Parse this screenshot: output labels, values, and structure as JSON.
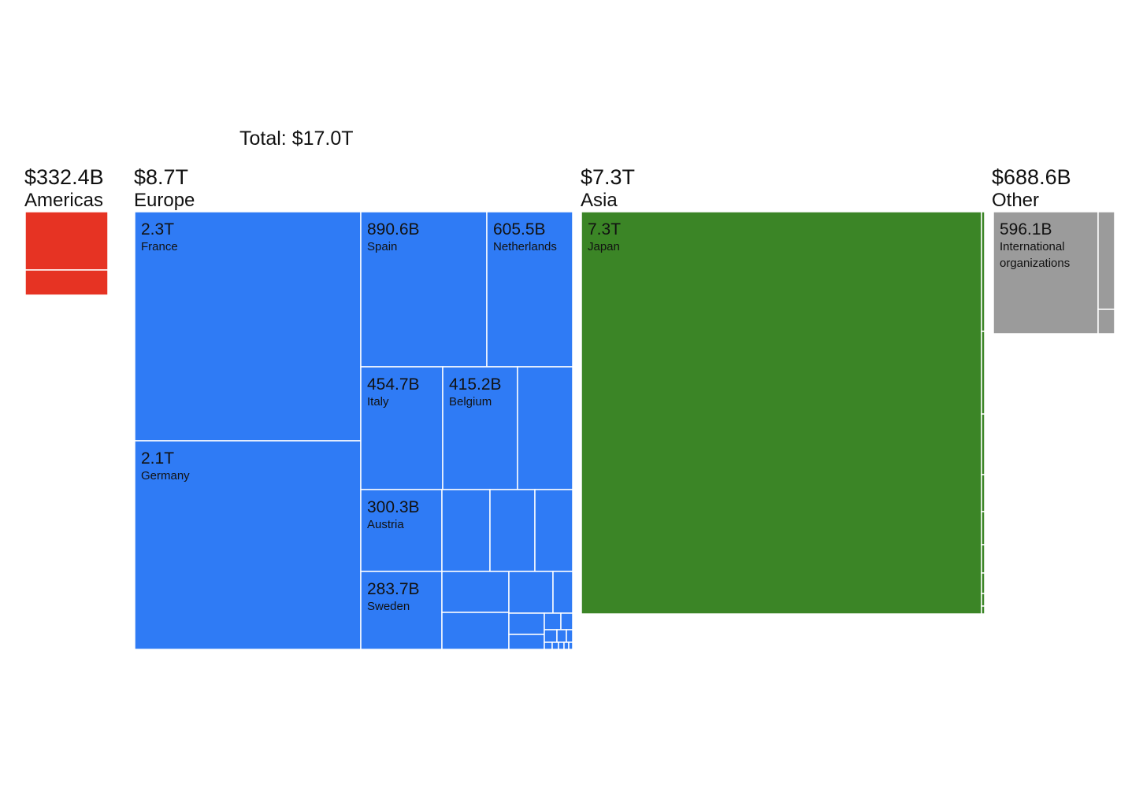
{
  "chart_data": {
    "type": "treemap",
    "total_label": "Total: $17.0T",
    "groups": [
      {
        "name": "Americas",
        "value_label": "$332.4B",
        "value": 332.4,
        "color": "#e63323",
        "items": [
          {
            "label": "",
            "value_label": "",
            "value": 233.2
          },
          {
            "label": "",
            "value_label": "",
            "value": 99.2
          }
        ]
      },
      {
        "name": "Europe",
        "value_label": "$8.7T",
        "value": 8700,
        "color": "#2f7bf5",
        "items": [
          {
            "label": "France",
            "value_label": "2.3T",
            "value": 2300
          },
          {
            "label": "Germany",
            "value_label": "2.1T",
            "value": 2100
          },
          {
            "label": "Spain",
            "value_label": "890.6B",
            "value": 890.6
          },
          {
            "label": "Netherlands",
            "value_label": "605.5B",
            "value": 605.5
          },
          {
            "label": "Italy",
            "value_label": "454.7B",
            "value": 454.7
          },
          {
            "label": "Belgium",
            "value_label": "415.2B",
            "value": 415.2
          },
          {
            "label": "Austria",
            "value_label": "300.3B",
            "value": 300.3
          },
          {
            "label": "Sweden",
            "value_label": "283.7B",
            "value": 283.7
          }
        ]
      },
      {
        "name": "Asia",
        "value_label": "$7.3T",
        "value": 7300,
        "color": "#3b8526",
        "items": [
          {
            "label": "Japan",
            "value_label": "7.3T",
            "value": 7300
          }
        ]
      },
      {
        "name": "Other",
        "value_label": "$688.6B",
        "value": 688.6,
        "color": "#9b9b9b",
        "items": [
          {
            "label": "International organizations",
            "label_lines": [
              "International",
              "organizations"
            ],
            "value_label": "596.1B",
            "value": 596.1
          }
        ]
      }
    ]
  }
}
